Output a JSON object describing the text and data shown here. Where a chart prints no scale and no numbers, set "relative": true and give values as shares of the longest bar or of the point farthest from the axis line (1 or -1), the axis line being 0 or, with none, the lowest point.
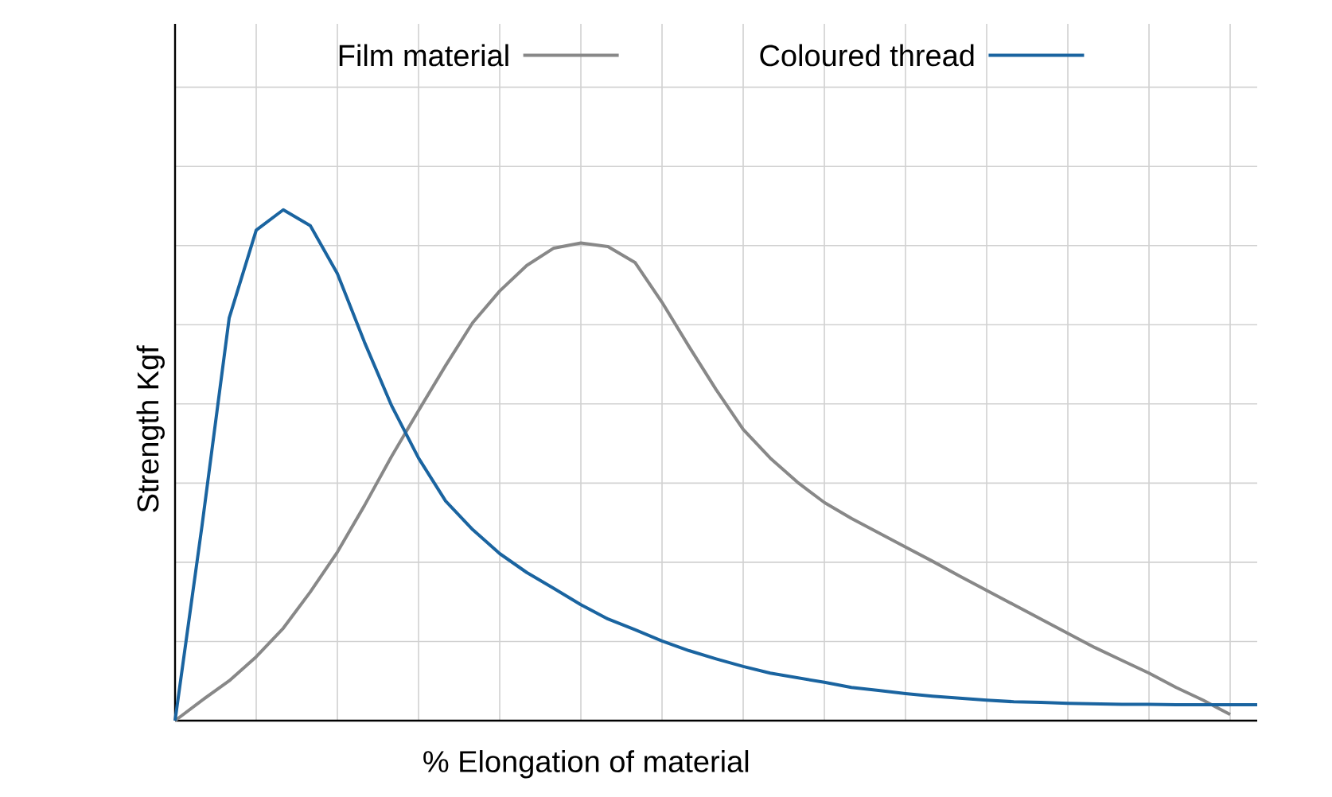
{
  "chart_data": {
    "type": "line",
    "relative": true,
    "xlabel": "% Elongation of material",
    "ylabel": "Strength Kgf",
    "grid": true,
    "legend": "top",
    "categories": [
      null,
      null,
      null,
      null,
      null,
      null,
      null,
      null,
      null,
      null,
      null,
      null,
      null,
      null,
      null,
      null,
      null,
      null,
      null,
      null,
      null,
      null,
      null,
      null,
      null,
      null,
      null,
      null,
      null,
      null,
      null,
      null,
      null,
      null,
      null,
      null,
      null,
      null,
      null,
      null,
      null
    ],
    "series": [
      {
        "name": "Film material",
        "color": "#888888",
        "values": [
          0,
          0.04,
          0.078,
          0.125,
          0.181,
          0.252,
          0.33,
          0.421,
          0.517,
          0.607,
          0.695,
          0.779,
          0.841,
          0.891,
          0.925,
          0.935,
          0.928,
          0.897,
          0.819,
          0.732,
          0.648,
          0.57,
          0.514,
          0.467,
          0.427,
          0.396,
          0.368,
          0.34,
          0.312,
          0.283,
          0.255,
          0.227,
          0.199,
          0.171,
          0.143,
          0.118,
          0.093,
          0.065,
          0.04,
          0.012,
          null
        ]
      },
      {
        "name": "Coloured thread",
        "color": "#1a64a0",
        "values": [
          0,
          0.383,
          0.788,
          0.96,
          1,
          0.969,
          0.875,
          0.741,
          0.617,
          0.514,
          0.43,
          0.374,
          0.327,
          0.29,
          0.259,
          0.227,
          0.199,
          0.178,
          0.156,
          0.137,
          0.121,
          0.106,
          0.093,
          0.084,
          0.075,
          0.065,
          0.059,
          0.053,
          0.048,
          0.044,
          0.04,
          0.037,
          0.036,
          0.034,
          0.033,
          0.032,
          0.032,
          0.031,
          0.031,
          0.031,
          0.031
        ]
      }
    ]
  }
}
